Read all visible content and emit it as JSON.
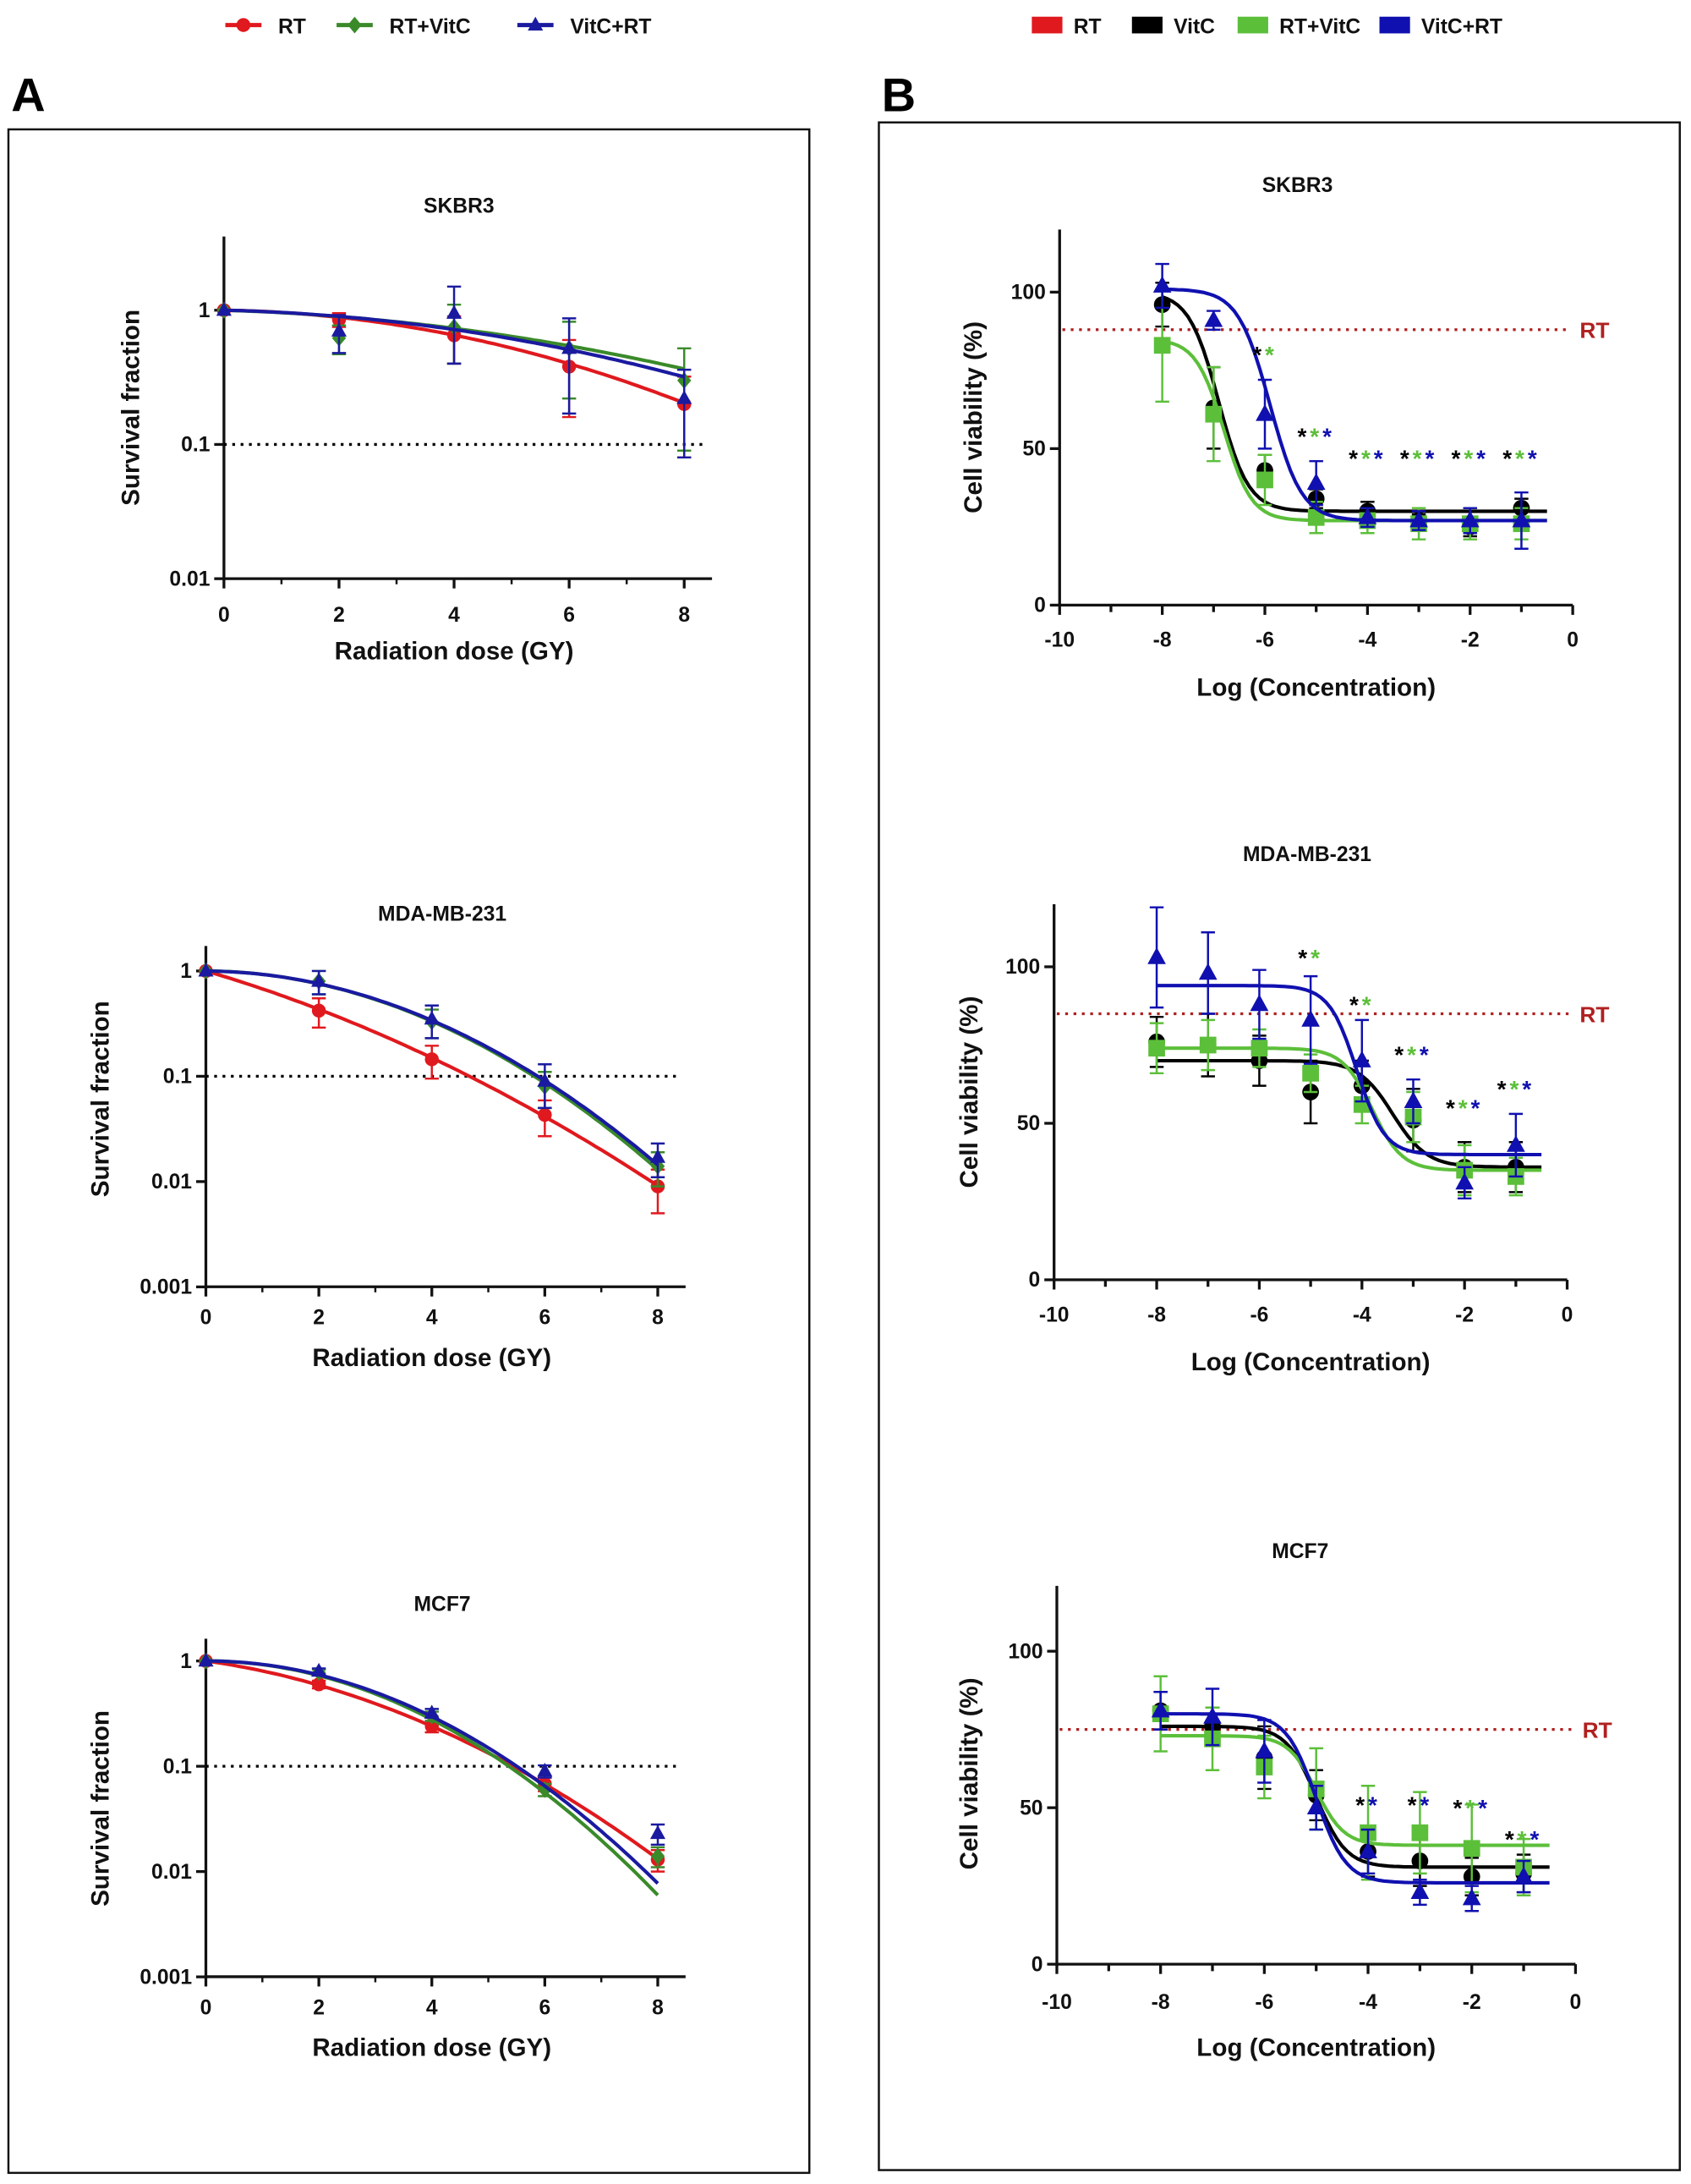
{
  "panels": [
    {
      "letter": "A"
    },
    {
      "letter": "B"
    }
  ],
  "legends": [
    {
      "items": [
        {
          "label": "RT",
          "color": "#e0191e",
          "marker": "circle"
        },
        {
          "label": "RT+VitC",
          "color": "#3a8a2a",
          "marker": "diamond"
        },
        {
          "label": "VitC+RT",
          "color": "#1a1aa0",
          "marker": "triangle"
        }
      ]
    },
    {
      "items": [
        {
          "label": "RT",
          "color": "#e0191e",
          "marker": "square"
        },
        {
          "label": "VitC",
          "color": "#000000",
          "marker": "square"
        },
        {
          "label": "RT+VitC",
          "color": "#5cbf3a",
          "marker": "square"
        },
        {
          "label": "VitC+RT",
          "color": "#1010b0",
          "marker": "square"
        }
      ]
    }
  ],
  "chart_data": [
    {
      "type": "line",
      "panel": "A",
      "title": "SKBR3",
      "xlabel": "Radiation dose (GY)",
      "ylabel": "Survival fraction",
      "xlim": [
        0,
        8.5
      ],
      "xticks": [
        "0",
        "2",
        "4",
        "6",
        "8"
      ],
      "xtick_values": [
        0,
        2,
        4,
        6,
        8
      ],
      "yscale": "log",
      "ylim": [
        0.01,
        3
      ],
      "yticks": [
        "1",
        "0.1",
        "0.01"
      ],
      "ytick_values": [
        1,
        0.1,
        0.01
      ],
      "reference_line": {
        "y": 0.1,
        "style": "dotted",
        "color": "#000000"
      },
      "x": [
        0,
        2,
        4,
        6,
        8
      ],
      "series": [
        {
          "name": "RT",
          "color": "#e0191e",
          "marker": "circle",
          "values": [
            1,
            0.85,
            0.65,
            0.38,
            0.2
          ],
          "errors": [
            0,
            0.1,
            0.25,
            0.22,
            0.12
          ],
          "fit": {
            "model": "linear-quadratic",
            "alpha": 0.015,
            "beta": 0.023
          }
        },
        {
          "name": "RT+VitC",
          "color": "#3a8a2a",
          "marker": "diamond",
          "values": [
            1,
            0.62,
            0.75,
            0.52,
            0.3
          ],
          "errors": [
            0,
            0.15,
            0.35,
            0.3,
            0.22
          ],
          "fit": {
            "model": "linear-quadratic",
            "alpha": 0.03,
            "beta": 0.012
          }
        },
        {
          "name": "VitC+RT",
          "color": "#1a1aa0",
          "marker": "triangle",
          "values": [
            1,
            0.7,
            0.95,
            0.52,
            0.22
          ],
          "errors": [
            0,
            0.22,
            0.55,
            0.35,
            0.14
          ],
          "fit": {
            "model": "linear-quadratic",
            "alpha": 0.023,
            "beta": 0.015
          }
        }
      ]
    },
    {
      "type": "line",
      "panel": "A",
      "title": "MDA-MB-231",
      "xlabel": "Radiation dose (GY)",
      "ylabel": "Survival fraction",
      "xlim": [
        0,
        8.5
      ],
      "xticks": [
        "0",
        "2",
        "4",
        "6",
        "8"
      ],
      "xtick_values": [
        0,
        2,
        4,
        6,
        8
      ],
      "yscale": "log",
      "ylim": [
        0.001,
        1.7
      ],
      "yticks": [
        "1",
        "0.1",
        "0.01",
        "0.001"
      ],
      "ytick_values": [
        1,
        0.1,
        0.01,
        0.001
      ],
      "reference_line": {
        "y": 0.1,
        "style": "dotted",
        "color": "#000000"
      },
      "x": [
        0,
        2,
        4,
        6,
        8
      ],
      "series": [
        {
          "name": "RT",
          "color": "#e0191e",
          "marker": "circle",
          "values": [
            1,
            0.42,
            0.145,
            0.043,
            0.009
          ],
          "errors": [
            0,
            0.13,
            0.05,
            0.016,
            0.004
          ],
          "fit": {
            "model": "linear-quadratic",
            "alpha": 0.363,
            "beta": 0.028
          }
        },
        {
          "name": "RT+VitC",
          "color": "#3a8a2a",
          "marker": "diamond",
          "values": [
            1,
            0.8,
            0.33,
            0.08,
            0.014
          ],
          "errors": [
            0,
            0.2,
            0.1,
            0.03,
            0.005
          ],
          "fit": {
            "model": "linear-quadratic",
            "alpha": 0.007,
            "beta": 0.067
          }
        },
        {
          "name": "VitC+RT",
          "color": "#1a1aa0",
          "marker": "triangle",
          "values": [
            1,
            0.8,
            0.35,
            0.09,
            0.017
          ],
          "errors": [
            0,
            0.2,
            0.12,
            0.04,
            0.006
          ],
          "fit": {
            "model": "linear-quadratic",
            "alpha": 0.01,
            "beta": 0.065
          }
        }
      ]
    },
    {
      "type": "line",
      "panel": "A",
      "title": "MCF7",
      "xlabel": "Radiation dose (GY)",
      "ylabel": "Survival fraction",
      "xlim": [
        0,
        8.5
      ],
      "xticks": [
        "0",
        "2",
        "4",
        "6",
        "8"
      ],
      "xtick_values": [
        0,
        2,
        4,
        6,
        8
      ],
      "yscale": "log",
      "ylim": [
        0.001,
        1.7
      ],
      "yticks": [
        "1",
        "0.1",
        "0.01",
        "0.001"
      ],
      "ytick_values": [
        1,
        0.1,
        0.01,
        0.001
      ],
      "reference_line": {
        "y": 0.1,
        "style": "dotted",
        "color": "#000000"
      },
      "x": [
        0,
        2,
        4,
        6,
        8
      ],
      "series": [
        {
          "name": "RT",
          "color": "#e0191e",
          "marker": "circle",
          "values": [
            1,
            0.6,
            0.24,
            0.068,
            0.013
          ],
          "errors": [
            0,
            0.05,
            0.03,
            0.01,
            0.003
          ],
          "fit": {
            "model": "linear-quadratic",
            "alpha": 0.173,
            "beta": 0.046
          }
        },
        {
          "name": "RT+VitC",
          "color": "#3a8a2a",
          "marker": "diamond",
          "values": [
            1,
            0.78,
            0.3,
            0.06,
            0.014
          ],
          "errors": [
            0,
            0.05,
            0.03,
            0.008,
            0.003
          ],
          "fit": {
            "model": "linear-quadratic",
            "alpha": 0,
            "beta": 0.08
          }
        },
        {
          "name": "VitC+RT",
          "color": "#1a1aa0",
          "marker": "triangle",
          "values": [
            1,
            0.8,
            0.32,
            0.09,
            0.023
          ],
          "errors": [
            0,
            0.05,
            0.03,
            0.012,
            0.005
          ],
          "fit": {
            "model": "linear-quadratic",
            "alpha": 0,
            "beta": 0.076
          }
        }
      ]
    },
    {
      "type": "line",
      "panel": "B",
      "title": "SKBR3",
      "xlabel": "Log (Concentration)",
      "ylabel": "Cell viability (%)",
      "xlim": [
        -10,
        0
      ],
      "xticks": [
        "-10",
        "-8",
        "-6",
        "-4",
        "-2",
        "0"
      ],
      "xtick_values": [
        -10,
        -8,
        -6,
        -4,
        -2,
        0
      ],
      "yscale": "linear",
      "ylim": [
        0,
        120
      ],
      "yticks": [
        "0",
        "50",
        "100"
      ],
      "ytick_values": [
        0,
        50,
        100
      ],
      "reference_line": {
        "y": 88,
        "style": "dotted",
        "color": "#b02020",
        "label": "RT"
      },
      "x": [
        -8,
        -7,
        -6,
        -5,
        -4,
        -3,
        -2,
        -1
      ],
      "series": [
        {
          "name": "VitC",
          "color": "#000000",
          "marker": "circle",
          "values": [
            96,
            63,
            43,
            34,
            30,
            27,
            25,
            31
          ],
          "errors": [
            7,
            13,
            5,
            3,
            3,
            2,
            3,
            3
          ],
          "fit": {
            "model": "4PL",
            "top": 100,
            "bottom": 30,
            "logIC50": -6.9,
            "hill": 1.5
          }
        },
        {
          "name": "RT+VitC",
          "color": "#5cbf3a",
          "marker": "square",
          "values": [
            83,
            61,
            40,
            28,
            27,
            26,
            26,
            26
          ],
          "errors": [
            18,
            15,
            8,
            5,
            4,
            5,
            5,
            5
          ],
          "fit": {
            "model": "4PL",
            "top": 85,
            "bottom": 27,
            "logIC50": -6.8,
            "hill": 1.6
          }
        },
        {
          "name": "VitC+RT",
          "color": "#1010b0",
          "marker": "triangle",
          "values": [
            102,
            91,
            61,
            39,
            28,
            27,
            27,
            27
          ],
          "errors": [
            7,
            3,
            11,
            7,
            3,
            3,
            4,
            9
          ],
          "fit": {
            "model": "4PL",
            "top": 101,
            "bottom": 27,
            "logIC50": -5.9,
            "hill": 1.4
          }
        }
      ],
      "annotations": [
        {
          "x": -6,
          "stars": [
            "#000000",
            "#5cbf3a"
          ],
          "y": 80
        },
        {
          "x": -5,
          "stars": [
            "#000000",
            "#5cbf3a",
            "#1010b0"
          ],
          "y": 54
        },
        {
          "x": -4,
          "stars": [
            "#000000",
            "#5cbf3a",
            "#1010b0"
          ],
          "y": 47
        },
        {
          "x": -3,
          "stars": [
            "#000000",
            "#5cbf3a",
            "#1010b0"
          ],
          "y": 47
        },
        {
          "x": -2,
          "stars": [
            "#000000",
            "#5cbf3a",
            "#1010b0"
          ],
          "y": 47
        },
        {
          "x": -1,
          "stars": [
            "#000000",
            "#5cbf3a",
            "#1010b0"
          ],
          "y": 47
        }
      ]
    },
    {
      "type": "line",
      "panel": "B",
      "title": "MDA-MB-231",
      "xlabel": "Log (Concentration)",
      "ylabel": "Cell viability (%)",
      "xlim": [
        -10,
        0
      ],
      "xticks": [
        "-10",
        "-8",
        "-6",
        "-4",
        "-2",
        "0"
      ],
      "xtick_values": [
        -10,
        -8,
        -6,
        -4,
        -2,
        0
      ],
      "yscale": "linear",
      "ylim": [
        0,
        120
      ],
      "yticks": [
        "0",
        "50",
        "100"
      ],
      "ytick_values": [
        0,
        50,
        100
      ],
      "reference_line": {
        "y": 85,
        "style": "dotted",
        "color": "#b02020",
        "label": "RT"
      },
      "x": [
        -8,
        -7,
        -6,
        -5,
        -4,
        -3,
        -2,
        -1
      ],
      "series": [
        {
          "name": "VitC",
          "color": "#000000",
          "marker": "circle",
          "values": [
            76,
            75,
            70,
            60,
            62,
            51,
            36,
            36
          ],
          "errors": [
            8,
            10,
            8,
            10,
            8,
            10,
            8,
            8
          ],
          "fit": {
            "model": "4PL",
            "top": 70,
            "bottom": 36,
            "logIC50": -3.4,
            "hill": 1.3
          }
        },
        {
          "name": "RT+VitC",
          "color": "#5cbf3a",
          "marker": "square",
          "values": [
            74,
            75,
            74,
            66,
            56,
            52,
            35,
            33
          ],
          "errors": [
            8,
            8,
            6,
            6,
            6,
            8,
            8,
            6
          ],
          "fit": {
            "model": "4PL",
            "top": 74,
            "bottom": 35,
            "logIC50": -3.8,
            "hill": 1.5
          }
        },
        {
          "name": "VitC+RT",
          "color": "#1010b0",
          "marker": "triangle",
          "values": [
            103,
            98,
            88,
            83,
            70,
            57,
            31,
            43
          ],
          "errors": [
            16,
            13,
            11,
            14,
            13,
            7,
            5,
            10
          ],
          "fit": {
            "model": "4PL",
            "top": 94,
            "bottom": 40,
            "logIC50": -4.1,
            "hill": 1.6
          }
        }
      ],
      "annotations": [
        {
          "x": -5,
          "stars": [
            "#000000",
            "#5cbf3a"
          ],
          "y": 103
        },
        {
          "x": -4,
          "stars": [
            "#000000",
            "#5cbf3a"
          ],
          "y": 88
        },
        {
          "x": -3,
          "stars": [
            "#000000",
            "#5cbf3a",
            "#1010b0"
          ],
          "y": 72
        },
        {
          "x": -2,
          "stars": [
            "#000000",
            "#5cbf3a",
            "#1010b0"
          ],
          "y": 55
        },
        {
          "x": -1,
          "stars": [
            "#000000",
            "#5cbf3a",
            "#1010b0"
          ],
          "y": 61
        }
      ]
    },
    {
      "type": "line",
      "panel": "B",
      "title": "MCF7",
      "xlabel": "Log (Concentration)",
      "ylabel": "Cell viability (%)",
      "xlim": [
        -10,
        0
      ],
      "xticks": [
        "-10",
        "-8",
        "-6",
        "-4",
        "-2",
        "0"
      ],
      "xtick_values": [
        -10,
        -8,
        -6,
        -4,
        -2,
        0
      ],
      "yscale": "linear",
      "ylim": [
        0,
        120
      ],
      "yticks": [
        "0",
        "50",
        "100"
      ],
      "ytick_values": [
        0,
        50,
        100
      ],
      "reference_line": {
        "y": 75,
        "style": "dotted",
        "color": "#b02020",
        "label": "RT"
      },
      "x": [
        -8,
        -7,
        -6,
        -5,
        -4,
        -3,
        -2,
        -1
      ],
      "series": [
        {
          "name": "VitC",
          "color": "#000000",
          "marker": "circle",
          "values": [
            81,
            76,
            66,
            54,
            36,
            33,
            28,
            29
          ],
          "errors": [
            6,
            6,
            10,
            8,
            8,
            8,
            6,
            6
          ],
          "fit": {
            "model": "4PL",
            "top": 76,
            "bottom": 31,
            "logIC50": -5.0,
            "hill": 1.5
          }
        },
        {
          "name": "RT+VitC",
          "color": "#5cbf3a",
          "marker": "square",
          "values": [
            80,
            72,
            63,
            56,
            42,
            42,
            37,
            31
          ],
          "errors": [
            12,
            10,
            10,
            13,
            15,
            13,
            14,
            9
          ],
          "fit": {
            "model": "4PL",
            "top": 73,
            "bottom": 38,
            "logIC50": -5.0,
            "hill": 1.6
          }
        },
        {
          "name": "VitC+RT",
          "color": "#1010b0",
          "marker": "triangle",
          "values": [
            81,
            79,
            68,
            50,
            36,
            23,
            21,
            28
          ],
          "errors": [
            6,
            9,
            10,
            7,
            7,
            4,
            4,
            5
          ],
          "fit": {
            "model": "4PL",
            "top": 80,
            "bottom": 26,
            "logIC50": -5.0,
            "hill": 1.5
          }
        }
      ],
      "annotations": [
        {
          "x": -4,
          "stars": [
            "#000000",
            "#1010b0"
          ],
          "y": 51
        },
        {
          "x": -3,
          "stars": [
            "#000000",
            "#1010b0"
          ],
          "y": 51
        },
        {
          "x": -2,
          "stars": [
            "#000000",
            "#5cbf3a",
            "#1010b0"
          ],
          "y": 50
        },
        {
          "x": -1,
          "stars": [
            "#000000",
            "#5cbf3a",
            "#1010b0"
          ],
          "y": 40
        }
      ]
    }
  ]
}
